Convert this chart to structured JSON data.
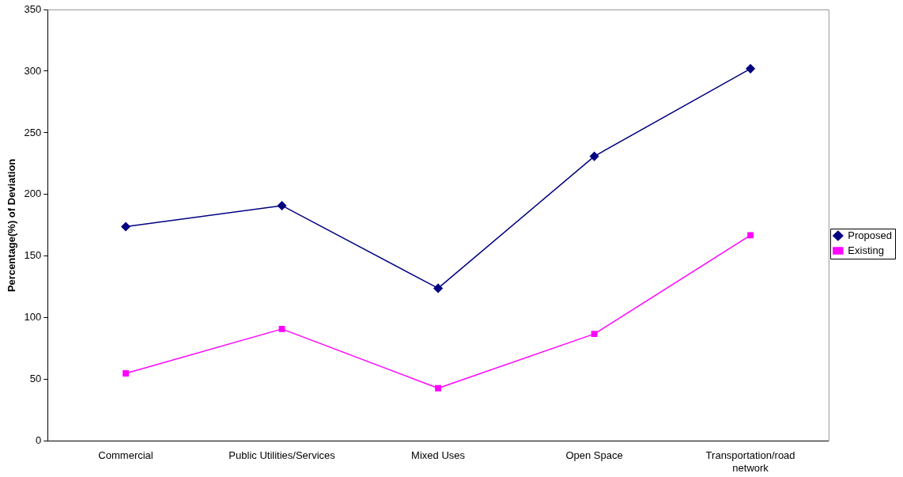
{
  "chart_data": {
    "type": "line",
    "ylabel": "Percentage(%) of Deviation",
    "categories": [
      "Commercial",
      "Public Utilities/Services",
      "Mixed Uses",
      "Open Space",
      "Transportation/road network"
    ],
    "series": [
      {
        "name": "Proposed",
        "color": "#000080",
        "marker": "diamond",
        "values": [
          174,
          191,
          124,
          231,
          302
        ]
      },
      {
        "name": "Existing",
        "color": "#ff00ff",
        "marker": "square",
        "values": [
          55,
          91,
          43,
          87,
          167
        ]
      }
    ],
    "ylim": [
      0,
      350
    ],
    "yticks": [
      0,
      50,
      100,
      150,
      200,
      250,
      300,
      350
    ],
    "grid": false,
    "legend": "right"
  }
}
